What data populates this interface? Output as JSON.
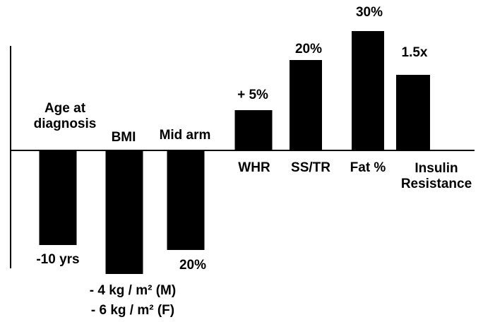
{
  "chart_data": {
    "type": "bar",
    "categories": [
      "Age at diagnosis",
      "BMI",
      "Mid arm",
      "WHR",
      "SS/TR",
      "Fat %",
      "Insulin Resistance"
    ],
    "values": [
      -134,
      -175,
      -141,
      57,
      128,
      169,
      107
    ],
    "value_notes": [
      [
        "-10 yrs"
      ],
      [
        "- 4 kg / m² (M)",
        "- 6 kg / m² (F)"
      ],
      [
        "20%"
      ],
      [
        "+ 5%"
      ],
      [
        "20%"
      ],
      [
        "30%"
      ],
      [
        "1.5x"
      ]
    ],
    "color": "#000000",
    "ylim": [
      -180,
      180
    ]
  }
}
